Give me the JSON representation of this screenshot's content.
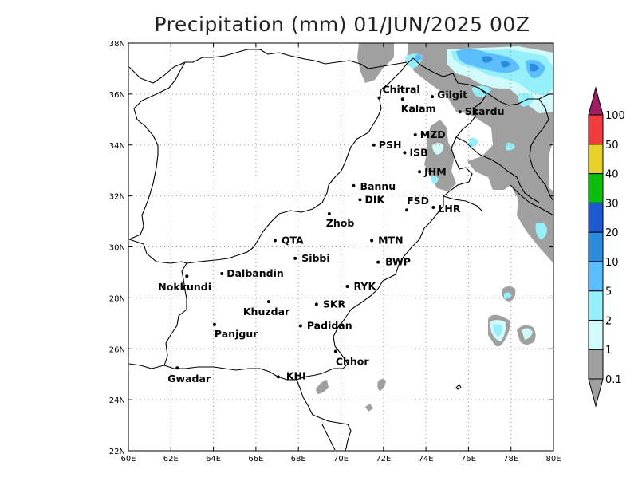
{
  "title": "Precipitation (mm) 01/JUN/2025 00Z",
  "x_ticks": [
    "60E",
    "62E",
    "64E",
    "66E",
    "68E",
    "70E",
    "72E",
    "74E",
    "76E",
    "78E",
    "80E"
  ],
  "y_ticks": [
    "22N",
    "24N",
    "26N",
    "28N",
    "30N",
    "32N",
    "34N",
    "36N",
    "38N"
  ],
  "legend": {
    "levels": [
      "0.1",
      "1",
      "2",
      "5",
      "10",
      "20",
      "30",
      "40",
      "50",
      "100"
    ],
    "colors": [
      "#a0a0a0",
      "#d2fafa",
      "#96f0fa",
      "#5abeff",
      "#2c8cdc",
      "#1e5ad2",
      "#0cbe0c",
      "#e6d228",
      "#f03c3c",
      "#a01e64"
    ]
  },
  "cities": [
    {
      "name": "Chitral",
      "lon": 71.8,
      "lat": 35.85,
      "lx": 4,
      "ly": -6
    },
    {
      "name": "Gilgit",
      "lon": 74.3,
      "lat": 35.9,
      "lx": 6,
      "ly": 2
    },
    {
      "name": "Kalam",
      "lon": 72.9,
      "lat": 35.8,
      "lx": -2,
      "ly": 16
    },
    {
      "name": "Skardu",
      "lon": 75.6,
      "lat": 35.3,
      "lx": 6,
      "ly": 4
    },
    {
      "name": "MZD",
      "lon": 73.5,
      "lat": 34.4,
      "lx": 6,
      "ly": 4
    },
    {
      "name": "PSH",
      "lon": 71.55,
      "lat": 34.0,
      "lx": 6,
      "ly": 4
    },
    {
      "name": "ISB",
      "lon": 73.0,
      "lat": 33.7,
      "lx": 6,
      "ly": 4
    },
    {
      "name": "JHM",
      "lon": 73.7,
      "lat": 32.95,
      "lx": 6,
      "ly": 4
    },
    {
      "name": "Bannu",
      "lon": 70.6,
      "lat": 32.4,
      "lx": 8,
      "ly": 5
    },
    {
      "name": "DIK",
      "lon": 70.9,
      "lat": 31.85,
      "lx": 6,
      "ly": 4
    },
    {
      "name": "FSD",
      "lon": 73.1,
      "lat": 31.45,
      "lx": 0,
      "ly": -7
    },
    {
      "name": "LHR",
      "lon": 74.35,
      "lat": 31.55,
      "lx": 6,
      "ly": 6
    },
    {
      "name": "Zhob",
      "lon": 69.45,
      "lat": 31.3,
      "lx": -4,
      "ly": 16
    },
    {
      "name": "QTA",
      "lon": 66.9,
      "lat": 30.25,
      "lx": 8,
      "ly": 4
    },
    {
      "name": "MTN",
      "lon": 71.45,
      "lat": 30.25,
      "lx": 8,
      "ly": 4
    },
    {
      "name": "Sibbi",
      "lon": 67.85,
      "lat": 29.55,
      "lx": 8,
      "ly": 4
    },
    {
      "name": "BWP",
      "lon": 71.75,
      "lat": 29.4,
      "lx": 9,
      "ly": 4
    },
    {
      "name": "Nokkundi",
      "lon": 62.75,
      "lat": 28.85,
      "lx": -36,
      "ly": 18
    },
    {
      "name": "Dalbandin",
      "lon": 64.4,
      "lat": 28.95,
      "lx": 6,
      "ly": 4
    },
    {
      "name": "RYK",
      "lon": 70.3,
      "lat": 28.45,
      "lx": 8,
      "ly": 4
    },
    {
      "name": "Khuzdar",
      "lon": 66.6,
      "lat": 27.85,
      "lx": -32,
      "ly": 17
    },
    {
      "name": "SKR",
      "lon": 68.85,
      "lat": 27.75,
      "lx": 8,
      "ly": 4
    },
    {
      "name": "Panjgur",
      "lon": 64.05,
      "lat": 26.95,
      "lx": 0,
      "ly": 16
    },
    {
      "name": "Padidan",
      "lon": 68.1,
      "lat": 26.9,
      "lx": 8,
      "ly": 4
    },
    {
      "name": "Chhor",
      "lon": 69.75,
      "lat": 25.9,
      "lx": 0,
      "ly": 17
    },
    {
      "name": "Gwadar",
      "lon": 62.3,
      "lat": 25.25,
      "lx": -12,
      "ly": 18
    },
    {
      "name": "KHI",
      "lon": 67.05,
      "lat": 24.9,
      "lx": 10,
      "ly": 3
    }
  ]
}
